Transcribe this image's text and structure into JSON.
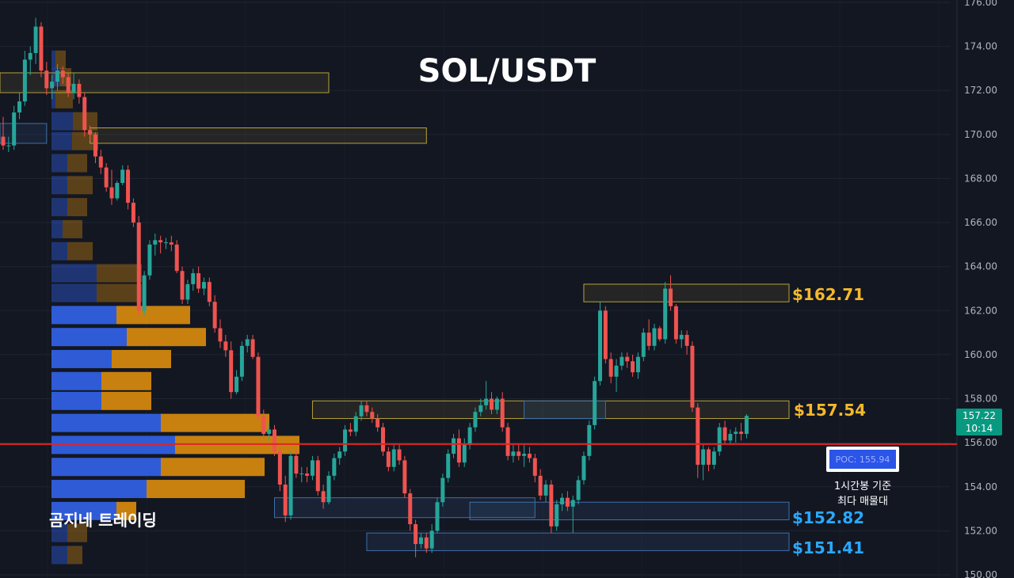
{
  "chart_data": {
    "type": "candlestick",
    "title": "SOL/USDT",
    "ylim": [
      150,
      176
    ],
    "y_ticks": [
      "150.00",
      "152.00",
      "154.00",
      "156.00",
      "158.00",
      "160.00",
      "162.00",
      "164.00",
      "166.00",
      "168.00",
      "170.00",
      "172.00",
      "174.00",
      "176.00"
    ],
    "grid": true,
    "colors": {
      "up": "#26a69a",
      "down": "#ef5350",
      "volume_buy": "#2f5cd6",
      "volume_sell": "#c8810f",
      "poc_line": "#e02424",
      "gold": "#f5b82a",
      "blue": "#29a8ff"
    },
    "candles": [
      [
        169.9,
        170.8,
        169.3,
        169.5
      ],
      [
        169.5,
        169.9,
        169.2,
        169.5
      ],
      [
        169.5,
        171.3,
        169.3,
        171.0
      ],
      [
        171.0,
        171.9,
        170.7,
        171.5
      ],
      [
        171.5,
        173.8,
        171.3,
        173.4
      ],
      [
        173.4,
        174.0,
        172.7,
        173.7
      ],
      [
        173.7,
        175.3,
        173.2,
        174.9
      ],
      [
        174.9,
        175.1,
        172.6,
        172.9
      ],
      [
        172.9,
        173.3,
        171.8,
        172.1
      ],
      [
        172.1,
        172.7,
        171.6,
        172.4
      ],
      [
        172.4,
        173.2,
        172.0,
        172.9
      ],
      [
        172.9,
        173.1,
        172.3,
        172.6
      ],
      [
        172.6,
        172.8,
        171.7,
        171.9
      ],
      [
        171.9,
        172.8,
        171.6,
        172.3
      ],
      [
        172.3,
        172.5,
        171.4,
        171.7
      ],
      [
        171.7,
        171.9,
        169.9,
        170.2
      ],
      [
        170.2,
        170.4,
        169.7,
        170.0
      ],
      [
        170.0,
        170.1,
        168.7,
        169.0
      ],
      [
        169.0,
        169.3,
        168.2,
        168.5
      ],
      [
        168.5,
        168.7,
        167.4,
        167.6
      ],
      [
        167.6,
        168.4,
        166.8,
        167.1
      ],
      [
        167.1,
        167.9,
        167.0,
        167.8
      ],
      [
        167.8,
        168.6,
        167.7,
        168.4
      ],
      [
        168.4,
        168.6,
        166.6,
        166.9
      ],
      [
        166.9,
        167.1,
        165.8,
        166.0
      ],
      [
        166.0,
        166.3,
        161.8,
        162.0
      ],
      [
        162.0,
        163.8,
        161.8,
        163.6
      ],
      [
        163.6,
        165.2,
        163.4,
        165.0
      ],
      [
        165.0,
        165.5,
        164.5,
        165.2
      ],
      [
        165.2,
        165.4,
        164.6,
        165.1
      ],
      [
        165.1,
        165.3,
        164.8,
        165.1
      ],
      [
        165.1,
        165.4,
        164.7,
        165.0
      ],
      [
        165.0,
        165.2,
        163.7,
        163.8
      ],
      [
        163.8,
        164.0,
        162.3,
        162.5
      ],
      [
        162.5,
        163.4,
        162.3,
        163.2
      ],
      [
        163.2,
        163.9,
        162.9,
        163.7
      ],
      [
        163.7,
        164.0,
        162.8,
        163.0
      ],
      [
        163.0,
        163.5,
        162.7,
        163.3
      ],
      [
        163.3,
        163.5,
        162.2,
        162.4
      ],
      [
        162.4,
        162.7,
        161.0,
        161.2
      ],
      [
        161.2,
        161.6,
        160.3,
        160.6
      ],
      [
        160.6,
        160.9,
        159.9,
        160.2
      ],
      [
        160.2,
        160.6,
        158.0,
        158.3
      ],
      [
        158.3,
        159.3,
        158.2,
        159.0
      ],
      [
        159.0,
        160.6,
        158.8,
        160.4
      ],
      [
        160.4,
        160.9,
        160.1,
        160.7
      ],
      [
        160.7,
        160.9,
        159.8,
        159.9
      ],
      [
        159.9,
        160.1,
        157.0,
        157.2
      ],
      [
        157.2,
        157.5,
        156.2,
        156.4
      ],
      [
        156.4,
        156.9,
        156.1,
        156.6
      ],
      [
        156.6,
        156.8,
        155.4,
        155.6
      ],
      [
        155.6,
        155.8,
        153.8,
        154.1
      ],
      [
        154.1,
        154.5,
        152.4,
        152.7
      ],
      [
        152.7,
        155.6,
        152.5,
        155.4
      ],
      [
        155.4,
        155.7,
        154.4,
        154.6
      ],
      [
        154.6,
        154.9,
        154.2,
        154.6
      ],
      [
        154.6,
        154.9,
        154.2,
        154.5
      ],
      [
        154.5,
        155.4,
        154.3,
        155.2
      ],
      [
        155.2,
        155.4,
        153.6,
        153.8
      ],
      [
        153.8,
        154.1,
        153.0,
        153.3
      ],
      [
        153.3,
        154.7,
        153.2,
        154.5
      ],
      [
        154.5,
        155.5,
        154.3,
        155.3
      ],
      [
        155.3,
        155.8,
        155.0,
        155.6
      ],
      [
        155.6,
        156.8,
        155.4,
        156.6
      ],
      [
        156.6,
        156.9,
        156.3,
        156.5
      ],
      [
        156.5,
        157.4,
        156.3,
        157.2
      ],
      [
        157.2,
        157.9,
        157.0,
        157.7
      ],
      [
        157.7,
        157.9,
        157.2,
        157.4
      ],
      [
        157.4,
        157.6,
        156.9,
        157.1
      ],
      [
        157.1,
        157.3,
        156.5,
        156.7
      ],
      [
        156.7,
        156.9,
        155.4,
        155.6
      ],
      [
        155.6,
        155.8,
        154.7,
        154.9
      ],
      [
        154.9,
        155.9,
        154.7,
        155.7
      ],
      [
        155.7,
        155.9,
        155.0,
        155.2
      ],
      [
        155.2,
        155.4,
        153.5,
        153.7
      ],
      [
        153.7,
        153.9,
        152.0,
        152.3
      ],
      [
        152.3,
        152.5,
        150.8,
        151.4
      ],
      [
        151.4,
        151.9,
        151.2,
        151.7
      ],
      [
        151.7,
        151.9,
        151.0,
        151.2
      ],
      [
        151.2,
        152.3,
        151.0,
        152.0
      ],
      [
        152.0,
        153.5,
        151.9,
        153.3
      ],
      [
        153.3,
        154.6,
        153.1,
        154.4
      ],
      [
        154.4,
        155.7,
        154.2,
        155.5
      ],
      [
        155.5,
        156.4,
        155.3,
        156.2
      ],
      [
        156.2,
        156.6,
        154.9,
        155.1
      ],
      [
        155.1,
        156.2,
        154.9,
        155.9
      ],
      [
        155.9,
        156.9,
        155.7,
        156.7
      ],
      [
        156.7,
        157.6,
        156.5,
        157.4
      ],
      [
        157.4,
        158.0,
        157.2,
        157.7
      ],
      [
        157.7,
        158.8,
        157.5,
        158.0
      ],
      [
        158.0,
        158.3,
        157.3,
        157.5
      ],
      [
        157.5,
        158.1,
        157.3,
        158.0
      ],
      [
        158.0,
        158.3,
        156.5,
        156.7
      ],
      [
        156.7,
        156.9,
        155.2,
        155.4
      ],
      [
        155.4,
        155.9,
        155.1,
        155.6
      ],
      [
        155.6,
        155.9,
        155.2,
        155.4
      ],
      [
        155.4,
        155.9,
        154.9,
        155.5
      ],
      [
        155.5,
        155.8,
        155.1,
        155.3
      ],
      [
        155.3,
        155.5,
        154.2,
        154.5
      ],
      [
        154.5,
        154.8,
        153.4,
        153.6
      ],
      [
        153.6,
        154.3,
        153.3,
        154.1
      ],
      [
        154.1,
        154.3,
        151.9,
        152.2
      ],
      [
        152.2,
        153.4,
        152.0,
        153.2
      ],
      [
        153.2,
        153.7,
        152.9,
        153.5
      ],
      [
        153.5,
        153.8,
        152.9,
        153.1
      ],
      [
        153.1,
        153.6,
        151.9,
        153.4
      ],
      [
        153.4,
        154.5,
        153.2,
        154.3
      ],
      [
        154.3,
        155.6,
        154.1,
        155.4
      ],
      [
        155.4,
        157.0,
        155.2,
        156.8
      ],
      [
        156.8,
        159.0,
        156.6,
        158.8
      ],
      [
        158.8,
        162.4,
        158.6,
        162.0
      ],
      [
        162.0,
        162.2,
        159.6,
        159.8
      ],
      [
        159.8,
        160.1,
        158.7,
        159.0
      ],
      [
        159.0,
        159.8,
        158.3,
        159.5
      ],
      [
        159.5,
        160.1,
        159.3,
        159.9
      ],
      [
        159.9,
        160.1,
        159.4,
        159.7
      ],
      [
        159.7,
        160.0,
        159.0,
        159.2
      ],
      [
        159.2,
        160.1,
        158.9,
        159.9
      ],
      [
        159.9,
        161.2,
        159.7,
        161.0
      ],
      [
        161.0,
        161.6,
        160.2,
        160.4
      ],
      [
        160.4,
        161.4,
        160.2,
        161.2
      ],
      [
        161.2,
        161.3,
        160.6,
        160.7
      ],
      [
        160.7,
        163.3,
        160.5,
        163.0
      ],
      [
        163.0,
        163.6,
        162.0,
        162.2
      ],
      [
        162.2,
        162.3,
        160.5,
        160.7
      ],
      [
        160.7,
        161.1,
        160.3,
        160.9
      ],
      [
        160.9,
        161.1,
        160.0,
        160.4
      ],
      [
        160.4,
        160.6,
        157.4,
        157.6
      ],
      [
        157.6,
        157.8,
        154.4,
        155.0
      ],
      [
        155.0,
        155.9,
        154.3,
        155.7
      ],
      [
        155.7,
        155.8,
        154.7,
        155.0
      ],
      [
        155.0,
        155.8,
        154.8,
        155.6
      ],
      [
        155.6,
        156.9,
        155.4,
        156.7
      ],
      [
        156.7,
        157.0,
        155.9,
        156.1
      ],
      [
        156.1,
        156.6,
        155.9,
        156.4
      ],
      [
        156.4,
        156.7,
        156.0,
        156.5
      ],
      [
        156.5,
        156.9,
        156.1,
        156.4
      ],
      [
        156.4,
        157.3,
        156.2,
        157.22
      ]
    ],
    "volume_profile": [
      {
        "price": 175.2,
        "buy": 0,
        "sell": 0
      },
      {
        "price": 173.4,
        "buy": 5,
        "sell": 13
      },
      {
        "price": 172.6,
        "buy": 11,
        "sell": 14
      },
      {
        "price": 171.6,
        "buy": 5,
        "sell": 22
      },
      {
        "price": 170.6,
        "buy": 27,
        "sell": 31
      },
      {
        "price": 169.7,
        "buy": 26,
        "sell": 33
      },
      {
        "price": 168.7,
        "buy": 20,
        "sell": 25
      },
      {
        "price": 167.7,
        "buy": 20,
        "sell": 32
      },
      {
        "price": 166.7,
        "buy": 20,
        "sell": 25
      },
      {
        "price": 165.7,
        "buy": 14,
        "sell": 25
      },
      {
        "price": 164.7,
        "buy": 20,
        "sell": 32
      },
      {
        "price": 163.7,
        "buy": 57,
        "sell": 57
      },
      {
        "price": 162.8,
        "buy": 57,
        "sell": 57
      },
      {
        "price": 161.8,
        "buy": 82,
        "sell": 93
      },
      {
        "price": 160.8,
        "buy": 95,
        "sell": 100
      },
      {
        "price": 159.8,
        "buy": 76,
        "sell": 75
      },
      {
        "price": 158.8,
        "buy": 63,
        "sell": 63
      },
      {
        "price": 157.9,
        "buy": 63,
        "sell": 63
      },
      {
        "price": 156.9,
        "buy": 138,
        "sell": 137
      },
      {
        "price": 155.9,
        "buy": 156,
        "sell": 157
      },
      {
        "price": 154.9,
        "buy": 138,
        "sell": 131
      },
      {
        "price": 153.9,
        "buy": 120,
        "sell": 124
      },
      {
        "price": 152.9,
        "buy": 82,
        "sell": 25
      },
      {
        "price": 151.9,
        "buy": 20,
        "sell": 25
      },
      {
        "price": 150.9,
        "buy": 20,
        "sell": 19
      }
    ],
    "zones": [
      {
        "low": 171.9,
        "high": 172.8,
        "color": "gold",
        "from": 0,
        "to": 60
      },
      {
        "low": 169.6,
        "high": 170.3,
        "color": "gold",
        "from": 16,
        "to": 78
      },
      {
        "low": 169.6,
        "high": 170.5,
        "color": "blue",
        "from": 0,
        "to": 8
      },
      {
        "low": 162.4,
        "high": 163.2,
        "color": "gold",
        "from": 107,
        "to": 120
      },
      {
        "low": 157.1,
        "high": 157.9,
        "color": "gold",
        "from": 57,
        "to": 120
      },
      {
        "low": 157.1,
        "high": 157.9,
        "color": "blue",
        "from": 96,
        "to": 111
      },
      {
        "low": 152.6,
        "high": 153.5,
        "color": "blue",
        "from": 50,
        "to": 98
      },
      {
        "low": 152.5,
        "high": 153.3,
        "color": "blue",
        "from": 86,
        "to": 120
      },
      {
        "low": 151.1,
        "high": 151.9,
        "color": "blue",
        "from": 67,
        "to": 120
      }
    ],
    "poc": 155.94,
    "last_price": "157.22",
    "countdown": "10:14"
  },
  "labels": {
    "level_1": "$162.71",
    "level_2": "$157.54",
    "level_3": "$152.82",
    "level_4": "$151.41",
    "poc_badge": "POC: 155.94",
    "poc_note_line1": "1시간봉 기준",
    "poc_note_line2": "최다 매물대",
    "brand": "곰지네 트레이딩"
  }
}
